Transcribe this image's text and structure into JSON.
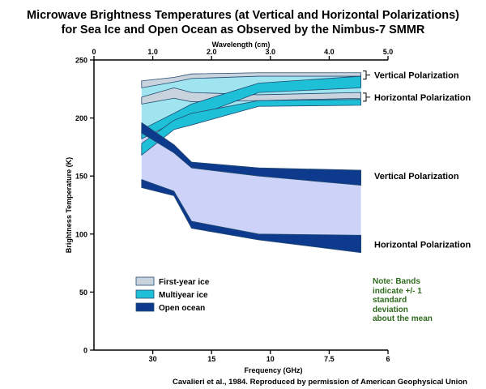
{
  "title_line1": "Microwave Brightness Temperatures (at Vertical and Horizontal Polarizations)",
  "title_line2": "for Sea Ice and Open Ocean as Observed by the Nimbus-7 SMMR",
  "credit": "Cavalieri et al., 1984. Reproduced by permission of American Geophysical Union",
  "note": [
    "Note: Bands",
    "indicate +/- 1",
    "standard",
    "deviation",
    "about the mean"
  ],
  "colors": {
    "first_year_ice": "#c9d3de",
    "multiyear_ice": "#1ec0d8",
    "open_ocean": "#0d3a8c",
    "ice_fill": "#9fe4ef",
    "ocean_fill": "#cdd3f8",
    "note_text": "#2e6b1e"
  },
  "chart_data": {
    "type": "area",
    "title": "Microwave Brightness Temperatures (at Vertical and Horizontal Polarizations) for Sea Ice and Open Ocean as Observed by the Nimbus-7 SMMR",
    "xlabel": "Frequency (GHz)",
    "x2label": "Wavelength (cm)",
    "ylabel": "Brightness Temperature (K)",
    "ylim": [
      0,
      250
    ],
    "wavelength_range_cm": [
      0,
      5
    ],
    "yticks": [
      0,
      50,
      100,
      150,
      200,
      250
    ],
    "xticks_top": [
      "0",
      "1.0",
      "2.0",
      "3.0",
      "4.0",
      "5.0"
    ],
    "xticks_bottom": [
      "30",
      "15",
      "10",
      "7.5",
      "6"
    ],
    "xticks_bottom_cm": [
      1.0,
      2.0,
      3.0,
      4.0,
      5.0
    ],
    "x_wavelength_cm": [
      0.81,
      1.36,
      1.66,
      2.8,
      4.54
    ],
    "bands": [
      {
        "surface": "First-year ice",
        "polarization": "Vertical",
        "lower": [
          226,
          231,
          234,
          236,
          236
        ],
        "upper": [
          232,
          235,
          238,
          239,
          239
        ]
      },
      {
        "surface": "First-year ice",
        "polarization": "Horizontal",
        "lower": [
          212,
          217,
          214,
          215,
          217
        ],
        "upper": [
          218,
          226,
          222,
          220,
          222
        ]
      },
      {
        "surface": "Multiyear ice",
        "polarization": "Vertical",
        "lower": [
          182,
          196,
          200,
          222,
          226
        ],
        "upper": [
          190,
          204,
          212,
          230,
          236
        ]
      },
      {
        "surface": "Multiyear ice",
        "polarization": "Horizontal",
        "lower": [
          168,
          190,
          194,
          210,
          211
        ],
        "upper": [
          178,
          198,
          204,
          215,
          216
        ]
      },
      {
        "surface": "Open ocean",
        "polarization": "Vertical",
        "lower": [
          187,
          170,
          157,
          150,
          142
        ],
        "upper": [
          196,
          177,
          162,
          157,
          155
        ]
      },
      {
        "surface": "Open ocean",
        "polarization": "Horizontal",
        "lower": [
          140,
          133,
          105,
          95,
          84
        ],
        "upper": [
          147,
          137,
          111,
          100,
          99
        ]
      }
    ],
    "fill_regions": [
      {
        "name": "ice",
        "lower": [
          168,
          190,
          194,
          210,
          211
        ],
        "upper": [
          232,
          235,
          238,
          239,
          239
        ]
      },
      {
        "name": "ocean",
        "lower": [
          147,
          137,
          111,
          100,
          99
        ],
        "upper": [
          187,
          170,
          157,
          150,
          142
        ]
      }
    ],
    "side_labels": [
      {
        "text": "Vertical Polarization",
        "y": 237
      },
      {
        "text": "Horizontal Polarization",
        "y": 218
      },
      {
        "text": "Vertical Polarization",
        "y": 150
      },
      {
        "text": "Horizontal Polarization",
        "y": 91
      }
    ],
    "legend": [
      "First-year ice",
      "Multiyear ice",
      "Open ocean"
    ],
    "legend_position": "bottom-left",
    "grid": false
  }
}
